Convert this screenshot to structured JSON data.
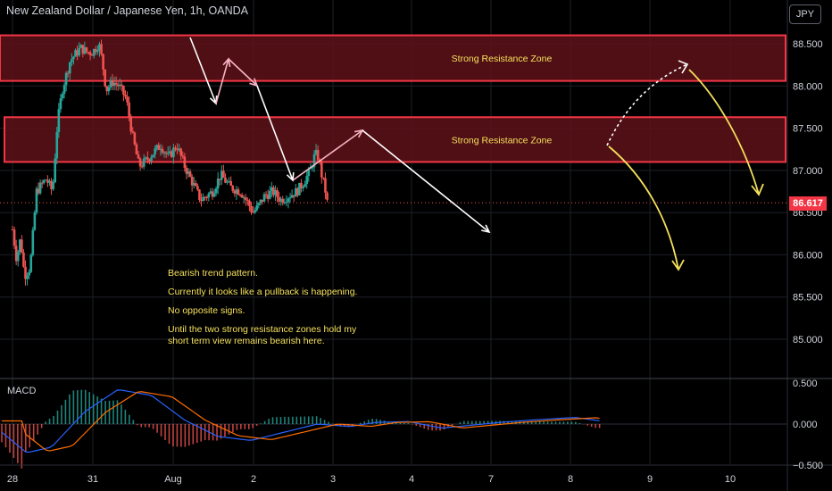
{
  "header": {
    "title": "New Zealand Dollar / Japanese Yen, 1h, OANDA",
    "currency_button": "JPY"
  },
  "indicator": {
    "label": "MACD"
  },
  "annotations": {
    "zone_label_top": "Strong Resistance Zone",
    "zone_label_mid": "Strong Resistance Zone",
    "notes": [
      "Bearish trend pattern.",
      "Currently it looks like a pullback is happening.",
      "No opposite signs.",
      "Until the two strong resistance zones hold my\nshort term view remains bearish here."
    ]
  },
  "last_price": "86.617",
  "colors": {
    "up": "#26a69a",
    "down": "#ef5350",
    "zone_fill": "#5e1219",
    "zone_border": "#f23645",
    "note_text": "#f5e05c",
    "arrow_white": "#ffffff",
    "arrow_pink": "#f8b4c3",
    "arrow_yellow": "#f5e05c",
    "macd_line": "#2962ff",
    "signal_line": "#ff6d00"
  },
  "chart_data": [
    {
      "type": "candlestick",
      "title": "New Zealand Dollar / Japanese Yen, 1h, OANDA",
      "x_ticks": [
        "28",
        "31",
        "Aug",
        "2",
        "3",
        "4",
        "7",
        "8",
        "9",
        "10"
      ],
      "y_ticks": [
        "88.500",
        "88.000",
        "87.500",
        "87.000",
        "86.500",
        "86.000",
        "85.500",
        "85.000"
      ],
      "ylim": [
        84.5,
        89.0
      ],
      "current_price": 86.617,
      "resistance_zones": [
        {
          "label": "Strong Resistance Zone",
          "from": 88.06,
          "to": 88.6
        },
        {
          "label": "Strong Resistance Zone",
          "from": 87.1,
          "to": 87.63
        }
      ],
      "close_path": [
        [
          0,
          86.3
        ],
        [
          0.05,
          85.95
        ],
        [
          0.1,
          86.2
        ],
        [
          0.15,
          85.75
        ],
        [
          0.22,
          85.85
        ],
        [
          0.3,
          86.75
        ],
        [
          0.42,
          86.9
        ],
        [
          0.5,
          86.75
        ],
        [
          0.56,
          87.55
        ],
        [
          0.62,
          87.95
        ],
        [
          0.72,
          88.3
        ],
        [
          0.85,
          88.45
        ],
        [
          0.93,
          88.4
        ],
        [
          1.0,
          88.4
        ],
        [
          1.08,
          88.5
        ],
        [
          1.12,
          88.3
        ],
        [
          1.17,
          87.95
        ],
        [
          1.25,
          88.05
        ],
        [
          1.33,
          88.0
        ],
        [
          1.42,
          87.85
        ],
        [
          1.5,
          87.4
        ],
        [
          1.58,
          87.05
        ],
        [
          1.65,
          87.1
        ],
        [
          1.75,
          87.2
        ],
        [
          1.85,
          87.3
        ],
        [
          1.95,
          87.15
        ],
        [
          2.05,
          87.3
        ],
        [
          2.15,
          87.05
        ],
        [
          2.25,
          86.85
        ],
        [
          2.35,
          86.65
        ],
        [
          2.5,
          86.75
        ],
        [
          2.6,
          86.95
        ],
        [
          2.72,
          86.8
        ],
        [
          2.85,
          86.75
        ],
        [
          2.95,
          86.6
        ],
        [
          3.0,
          86.5
        ],
        [
          3.05,
          86.55
        ],
        [
          3.15,
          86.7
        ],
        [
          3.25,
          86.75
        ],
        [
          3.35,
          86.65
        ],
        [
          3.45,
          86.7
        ],
        [
          3.55,
          86.75
        ],
        [
          3.63,
          86.85
        ],
        [
          3.72,
          87.0
        ],
        [
          3.78,
          87.2
        ],
        [
          3.82,
          87.15
        ],
        [
          3.87,
          86.9
        ],
        [
          3.9,
          86.8
        ],
        [
          3.93,
          86.62
        ]
      ],
      "drawn_arrows": "trend arrows from 88.50 down to 86.30 with pullbacks",
      "projection": "yellow arrows toward 85.9 and 86.7"
    },
    {
      "type": "line",
      "title": "MACD",
      "y_ticks": [
        "0.500",
        "0.000",
        "−0.500"
      ],
      "ylim": [
        -0.5,
        0.5
      ],
      "series": []
    }
  ]
}
